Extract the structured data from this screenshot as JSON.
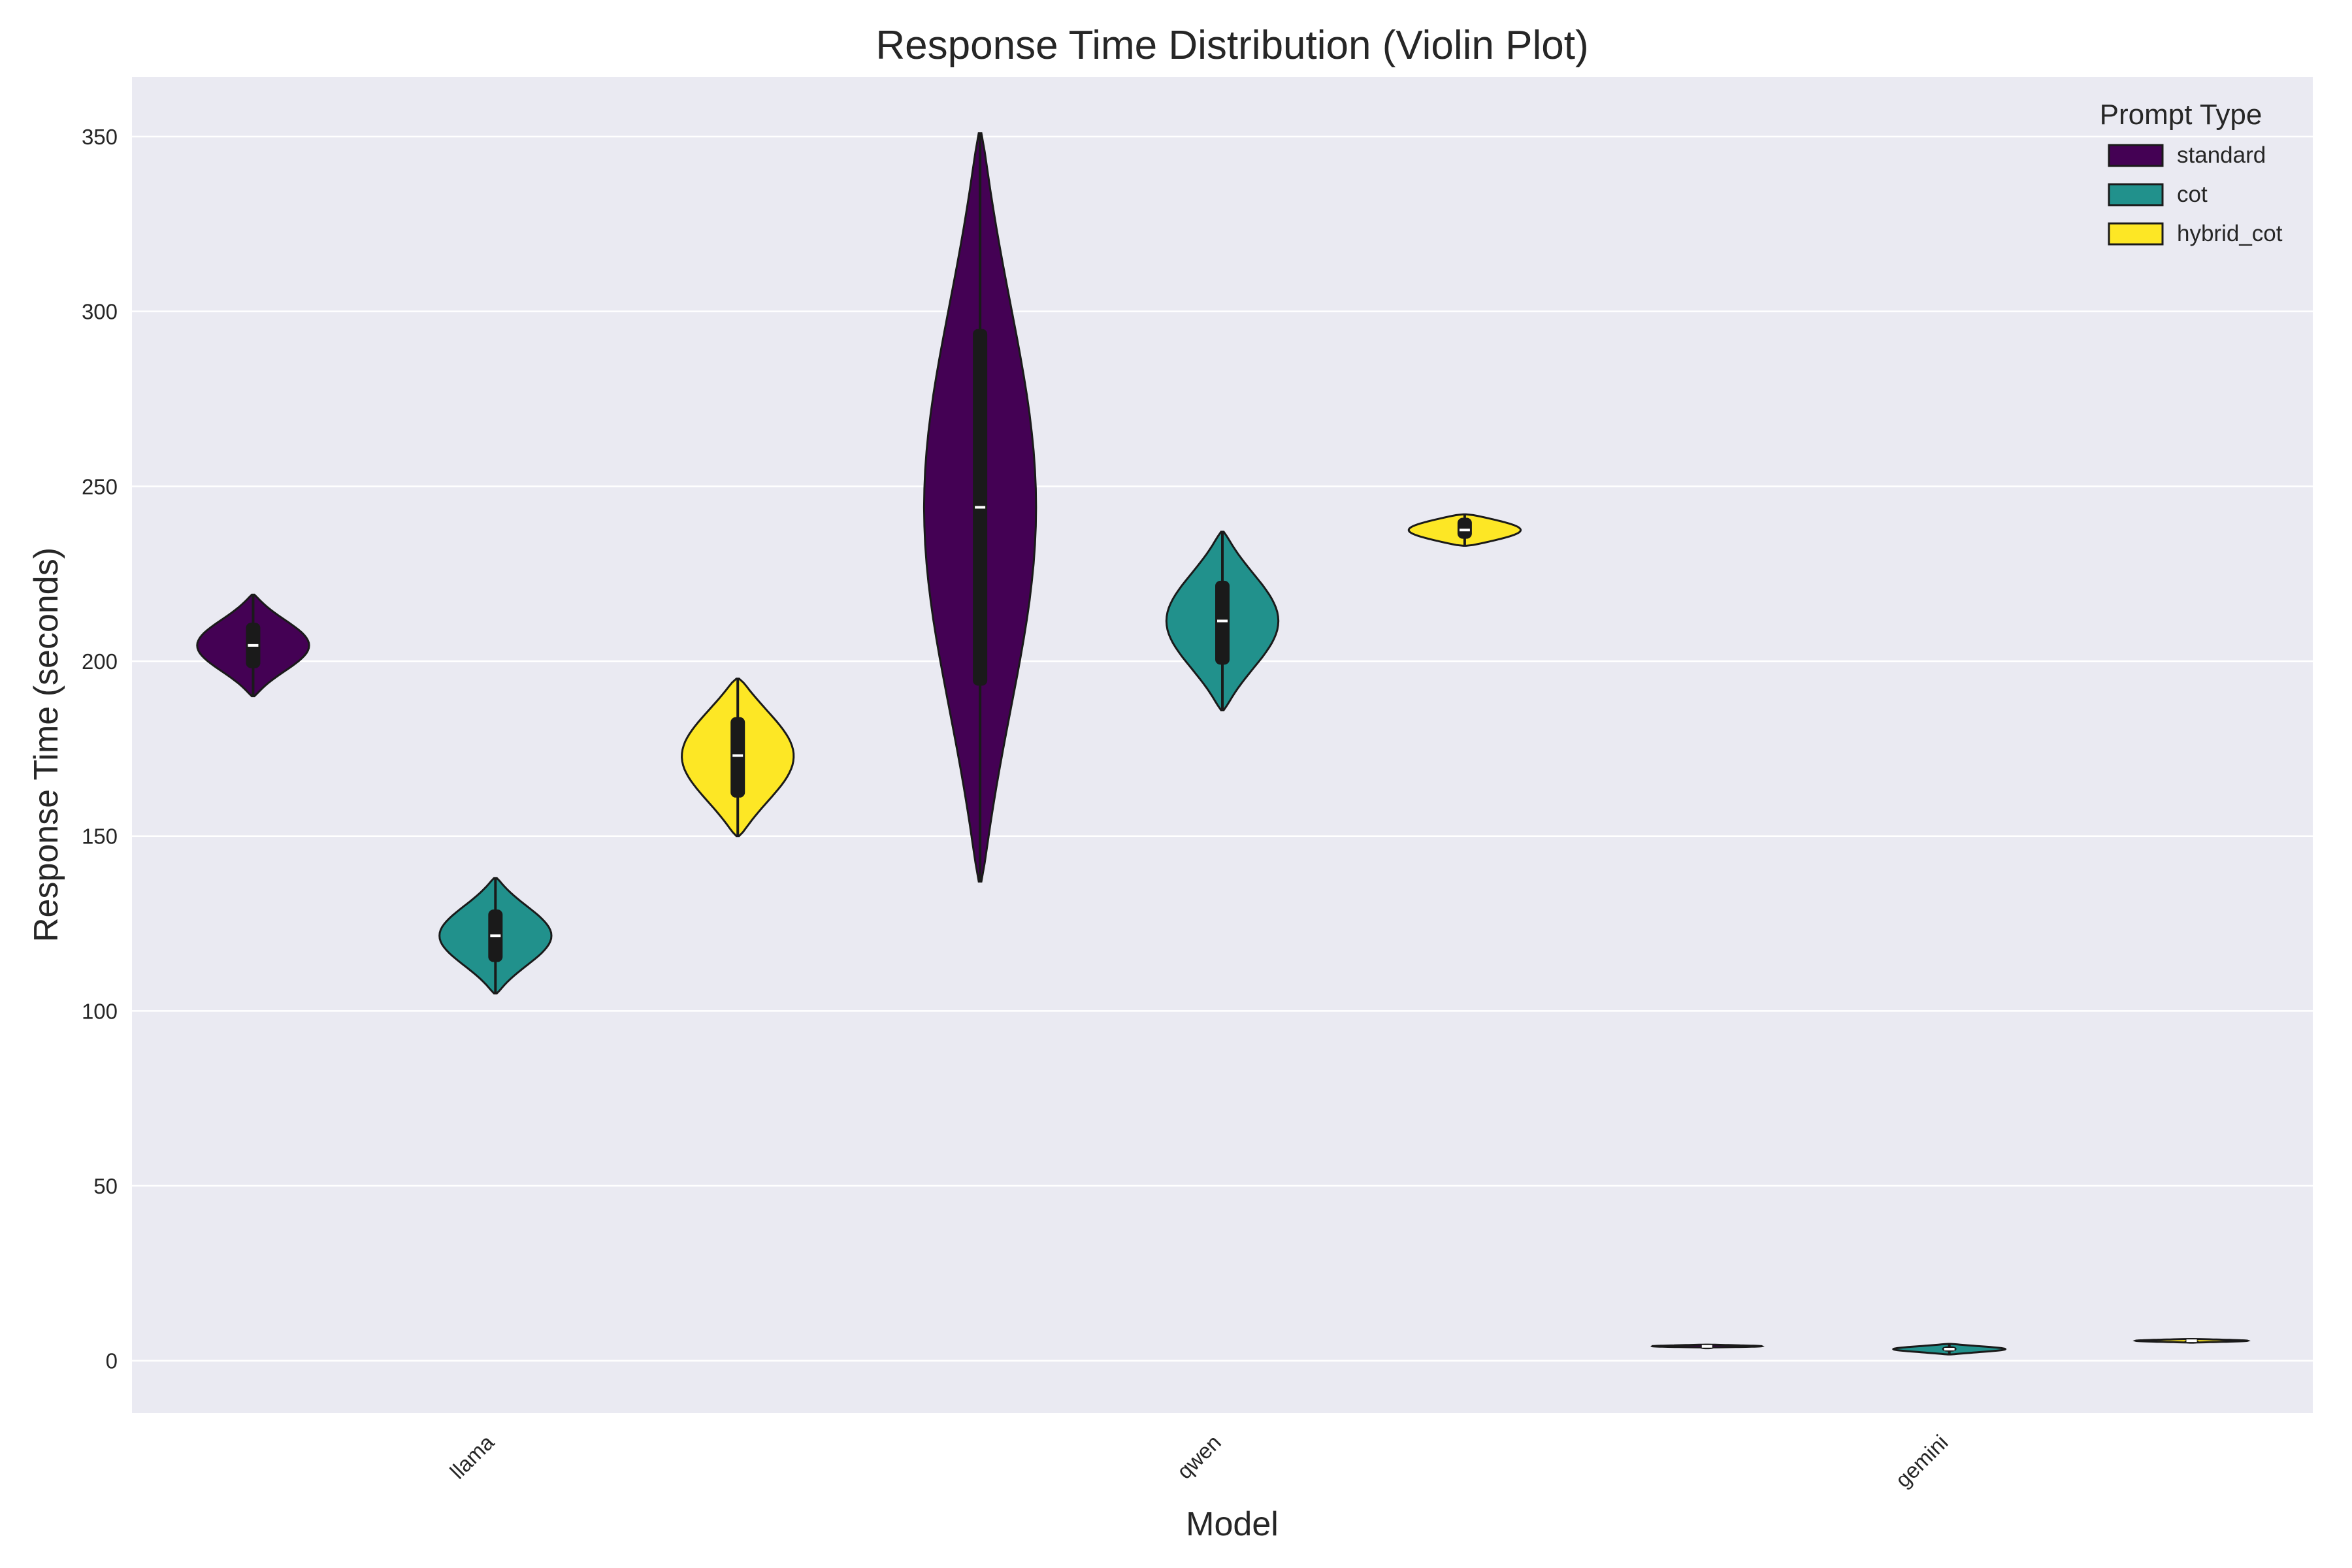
{
  "chart_data": {
    "type": "violin",
    "title": "Response Time Distribution (Violin Plot)",
    "xlabel": "Model",
    "ylabel": "Response Time (seconds)",
    "categories": [
      "llama",
      "qwen",
      "gemini"
    ],
    "ylim": [
      -15,
      367
    ],
    "yticks": [
      0,
      50,
      100,
      150,
      200,
      250,
      300,
      350
    ],
    "grid": true,
    "legend": {
      "title": "Prompt Type",
      "placement": "top-right"
    },
    "series": [
      {
        "name": "standard",
        "color": "#440154"
      },
      {
        "name": "cot",
        "color": "#21918c"
      },
      {
        "name": "hybrid_cot",
        "color": "#fde725"
      }
    ],
    "violins": [
      {
        "category": "llama",
        "series": "standard",
        "min": 190,
        "max": 219,
        "q1": 198,
        "median": 204.5,
        "q3": 211
      },
      {
        "category": "llama",
        "series": "cot",
        "min": 105,
        "max": 138,
        "q1": 114,
        "median": 121.5,
        "q3": 129
      },
      {
        "category": "llama",
        "series": "hybrid_cot",
        "min": 150,
        "max": 195,
        "q1": 161,
        "median": 173,
        "q3": 184
      },
      {
        "category": "qwen",
        "series": "standard",
        "min": 137,
        "max": 351,
        "q1": 193,
        "median": 244,
        "q3": 295
      },
      {
        "category": "qwen",
        "series": "cot",
        "min": 186,
        "max": 237,
        "q1": 199,
        "median": 211.5,
        "q3": 223
      },
      {
        "category": "qwen",
        "series": "hybrid_cot",
        "min": 233,
        "max": 242,
        "q1": 235,
        "median": 237.5,
        "q3": 241
      },
      {
        "category": "gemini",
        "series": "standard",
        "min": 3.8,
        "max": 4.6,
        "q1": 3.9,
        "median": 4.1,
        "q3": 4.4
      },
      {
        "category": "gemini",
        "series": "cot",
        "min": 1.8,
        "max": 4.8,
        "q1": 2.6,
        "median": 3.3,
        "q3": 4.1
      },
      {
        "category": "gemini",
        "series": "hybrid_cot",
        "min": 5.2,
        "max": 6.2,
        "q1": 5.4,
        "median": 5.7,
        "q3": 6.0
      }
    ]
  }
}
